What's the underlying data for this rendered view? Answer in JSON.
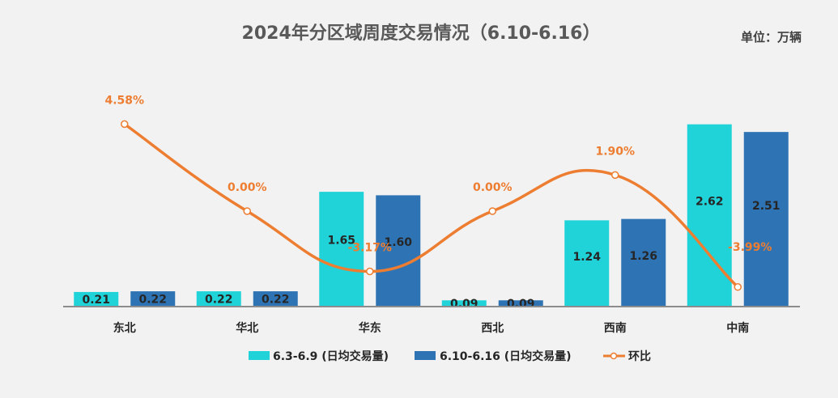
{
  "chart_data": {
    "type": "bar",
    "title": "2024年分区域周度交易情况（6.10-6.16）",
    "unit_label": "单位：万辆",
    "categories": [
      "东北",
      "华北",
      "华东",
      "西北",
      "西南",
      "中南"
    ],
    "series": [
      {
        "name": "6.3-6.9 (日均交易量)",
        "values": [
          0.21,
          0.22,
          1.65,
          0.09,
          1.24,
          2.62
        ],
        "color": "#1fd3d8"
      },
      {
        "name": "6.10-6.16  (日均交易量)",
        "values": [
          0.22,
          0.22,
          1.6,
          0.09,
          1.26,
          2.51
        ],
        "color": "#2e74b5"
      }
    ],
    "line_series": {
      "name": "环比",
      "values": [
        4.58,
        0.0,
        -3.17,
        0.0,
        1.9,
        -3.99
      ],
      "labels": [
        "4.58%",
        "0.00%",
        "-3.17%",
        "0.00%",
        "1.90%",
        "-3.99%"
      ],
      "color": "#ed7d31"
    },
    "legend_position": "bottom",
    "grid": false
  }
}
